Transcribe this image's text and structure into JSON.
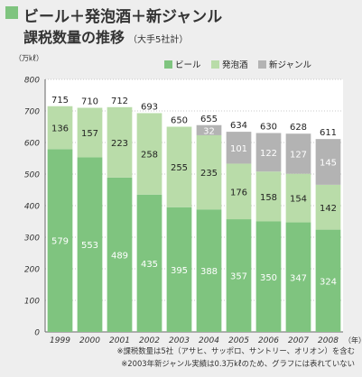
{
  "title": {
    "line1": "ビール＋発泡酒＋新ジャンル",
    "line2": "課税数量の推移",
    "sub": "（大手5社計）"
  },
  "notes": [
    "※課税数量は5社（アサヒ、サッポロ、サントリー、オリオン）を含む",
    "※2003年新ジャンル実績は0.3万㎘のため、グラフには表れていない"
  ],
  "chart_data": {
    "type": "bar",
    "stacked": true,
    "ylabel": "（万㎘）",
    "xunit": "（年）",
    "ylim": [
      0,
      800
    ],
    "yticks": [
      0,
      100,
      200,
      300,
      400,
      500,
      600,
      700,
      800
    ],
    "grid": true,
    "legend_position": "top-right",
    "categories": [
      "1999",
      "2000",
      "2001",
      "2002",
      "2003",
      "2004",
      "2005",
      "2006",
      "2007",
      "2008"
    ],
    "series": [
      {
        "name": "ビール",
        "color": "#7fc47f",
        "values": [
          579,
          553,
          489,
          435,
          395,
          388,
          357,
          350,
          347,
          324
        ]
      },
      {
        "name": "発泡酒",
        "color": "#b9dca9",
        "values": [
          136,
          157,
          223,
          258,
          255,
          235,
          176,
          158,
          154,
          142
        ]
      },
      {
        "name": "新ジャンル",
        "color": "#b3b3b3",
        "values": [
          0,
          0,
          0,
          0,
          0,
          32,
          101,
          122,
          127,
          145
        ]
      }
    ],
    "totals": [
      715,
      710,
      712,
      693,
      650,
      655,
      634,
      630,
      628,
      611
    ]
  }
}
